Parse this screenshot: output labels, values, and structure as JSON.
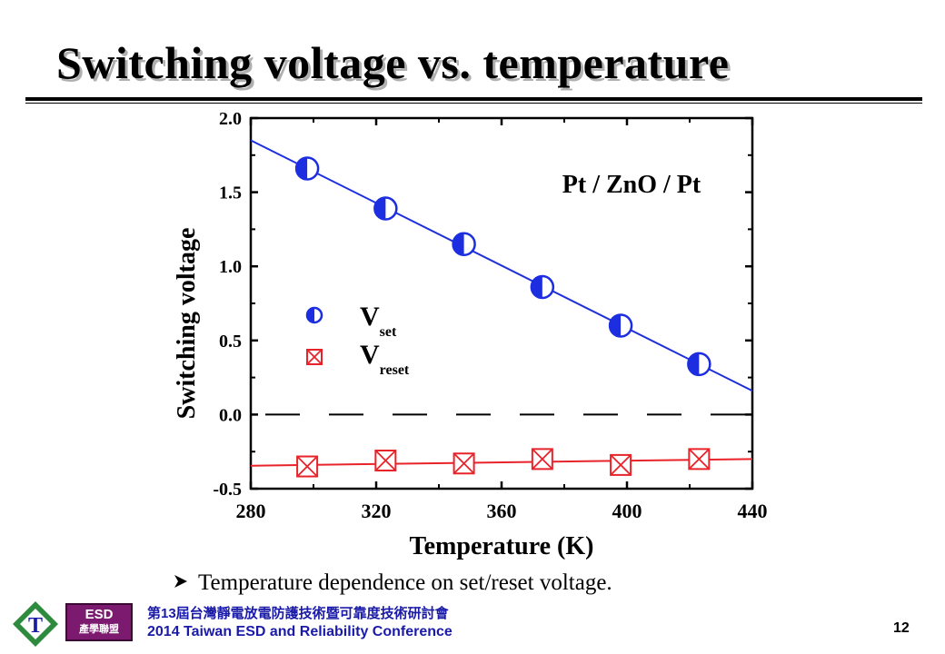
{
  "slide": {
    "title": "Switching voltage vs. temperature",
    "bullet": "Temperature dependence on set/reset voltage.",
    "footer_line1": "第13屆台灣靜電放電防護技術暨可靠度技術研討會",
    "footer_line2": "2014 Taiwan ESD and Reliability Conference",
    "page_number": "12",
    "badge_top": "ESD",
    "badge_bottom": "產學聯盟",
    "logo_letter": "T"
  },
  "chart_data": {
    "type": "scatter",
    "title": "",
    "annotation": "Pt / ZnO / Pt",
    "xlabel": "Temperature (K)",
    "ylabel": "Switching voltage",
    "xlim": [
      280,
      440
    ],
    "ylim": [
      -0.5,
      2.0
    ],
    "xticks": [
      "280",
      "320",
      "360",
      "400",
      "440"
    ],
    "yticks": [
      "-0.5",
      "0.0",
      "0.5",
      "1.0",
      "1.5",
      "2.0"
    ],
    "grid": false,
    "legend_position": "center-left",
    "reference_line": {
      "y": 0.0,
      "style": "dashed"
    },
    "series": [
      {
        "name": "V",
        "subscript": "set",
        "marker": "half-filled-circle",
        "color": "#1c2ee0",
        "x": [
          298,
          323,
          348,
          373,
          398,
          423
        ],
        "y": [
          1.66,
          1.39,
          1.15,
          0.86,
          0.6,
          0.34
        ],
        "fit_line": {
          "x": [
            280,
            440
          ],
          "y": [
            1.85,
            0.16
          ]
        }
      },
      {
        "name": "V",
        "subscript": "reset",
        "marker": "crossed-square",
        "color": "#e8232a",
        "x": [
          298,
          323,
          348,
          373,
          398,
          423
        ],
        "y": [
          -0.35,
          -0.31,
          -0.33,
          -0.3,
          -0.34,
          -0.3
        ],
        "fit_line": {
          "x": [
            280,
            440
          ],
          "y": [
            -0.345,
            -0.3
          ]
        }
      }
    ]
  }
}
